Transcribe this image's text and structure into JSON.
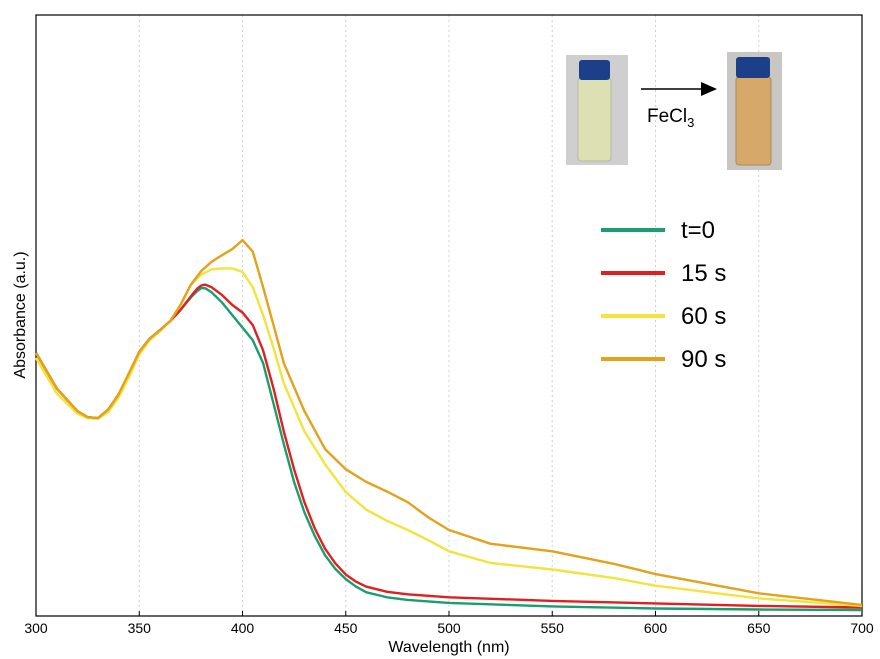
{
  "chart_data": {
    "type": "line",
    "xlabel": "Wavelength (nm)",
    "ylabel": "Absorbance (a.u.)",
    "xlim": [
      300,
      700
    ],
    "ylim": [
      0,
      1.0
    ],
    "x_ticks": [
      300,
      350,
      400,
      450,
      500,
      550,
      600,
      650,
      700
    ],
    "y_tick_labels": false,
    "grid": "vertical dashed at x ticks",
    "legend_placement": "right, below inset",
    "series": [
      {
        "name": "t=0",
        "color": "#1a9e6e",
        "x": [
          300,
          310,
          320,
          325,
          330,
          335,
          340,
          345,
          350,
          355,
          360,
          365,
          370,
          375,
          378,
          380,
          382,
          385,
          390,
          395,
          400,
          405,
          410,
          415,
          420,
          425,
          430,
          435,
          440,
          445,
          450,
          455,
          460,
          470,
          480,
          500,
          550,
          600,
          650,
          700
        ],
        "y": [
          0.51,
          0.44,
          0.395,
          0.383,
          0.381,
          0.398,
          0.428,
          0.468,
          0.512,
          0.538,
          0.555,
          0.573,
          0.595,
          0.62,
          0.632,
          0.638,
          0.638,
          0.63,
          0.61,
          0.585,
          0.56,
          0.535,
          0.49,
          0.41,
          0.33,
          0.255,
          0.195,
          0.148,
          0.11,
          0.083,
          0.063,
          0.048,
          0.037,
          0.027,
          0.022,
          0.016,
          0.009,
          0.005,
          0.003,
          0.002
        ]
      },
      {
        "name": "15 s",
        "color": "#e02020",
        "x": [
          300,
          310,
          320,
          325,
          330,
          335,
          340,
          345,
          350,
          355,
          360,
          365,
          370,
          375,
          378,
          380,
          382,
          385,
          390,
          395,
          400,
          405,
          410,
          415,
          420,
          425,
          430,
          435,
          440,
          445,
          450,
          455,
          460,
          470,
          480,
          500,
          550,
          600,
          650,
          700
        ],
        "y": [
          0.51,
          0.44,
          0.395,
          0.383,
          0.381,
          0.398,
          0.428,
          0.468,
          0.512,
          0.538,
          0.555,
          0.573,
          0.595,
          0.622,
          0.637,
          0.643,
          0.645,
          0.64,
          0.625,
          0.605,
          0.59,
          0.565,
          0.515,
          0.44,
          0.355,
          0.28,
          0.215,
          0.163,
          0.123,
          0.094,
          0.072,
          0.058,
          0.048,
          0.038,
          0.033,
          0.027,
          0.02,
          0.015,
          0.01,
          0.007
        ]
      },
      {
        "name": "60 s",
        "color": "#f2e43c",
        "x": [
          300,
          310,
          320,
          325,
          330,
          335,
          340,
          345,
          350,
          355,
          360,
          365,
          370,
          375,
          380,
          385,
          390,
          395,
          400,
          405,
          410,
          415,
          420,
          430,
          440,
          450,
          460,
          470,
          480,
          490,
          500,
          520,
          550,
          580,
          600,
          650,
          700
        ],
        "y": [
          0.5,
          0.43,
          0.39,
          0.381,
          0.38,
          0.393,
          0.422,
          0.462,
          0.507,
          0.535,
          0.553,
          0.573,
          0.605,
          0.645,
          0.665,
          0.675,
          0.677,
          0.677,
          0.67,
          0.64,
          0.585,
          0.52,
          0.45,
          0.355,
          0.29,
          0.235,
          0.2,
          0.178,
          0.16,
          0.14,
          0.118,
          0.095,
          0.082,
          0.065,
          0.05,
          0.025,
          0.01
        ]
      },
      {
        "name": "90 s",
        "color": "#e3a21a",
        "x": [
          300,
          310,
          320,
          325,
          330,
          335,
          340,
          345,
          350,
          355,
          360,
          365,
          370,
          375,
          380,
          385,
          390,
          395,
          400,
          405,
          410,
          415,
          420,
          430,
          440,
          450,
          460,
          470,
          480,
          490,
          500,
          520,
          550,
          580,
          600,
          650,
          700
        ],
        "y": [
          0.51,
          0.44,
          0.395,
          0.383,
          0.381,
          0.398,
          0.428,
          0.47,
          0.512,
          0.538,
          0.555,
          0.573,
          0.605,
          0.645,
          0.672,
          0.69,
          0.703,
          0.715,
          0.733,
          0.71,
          0.64,
          0.565,
          0.49,
          0.395,
          0.32,
          0.28,
          0.255,
          0.236,
          0.215,
          0.185,
          0.16,
          0.133,
          0.118,
          0.093,
          0.073,
          0.035,
          0.012
        ]
      }
    ]
  },
  "inset": {
    "reagent_label": "FeCl",
    "reagent_subscript": "3",
    "vial_before_color": "#dde0b3",
    "vial_after_color": "#d6a86a",
    "cap_color": "#1d3f8a"
  }
}
